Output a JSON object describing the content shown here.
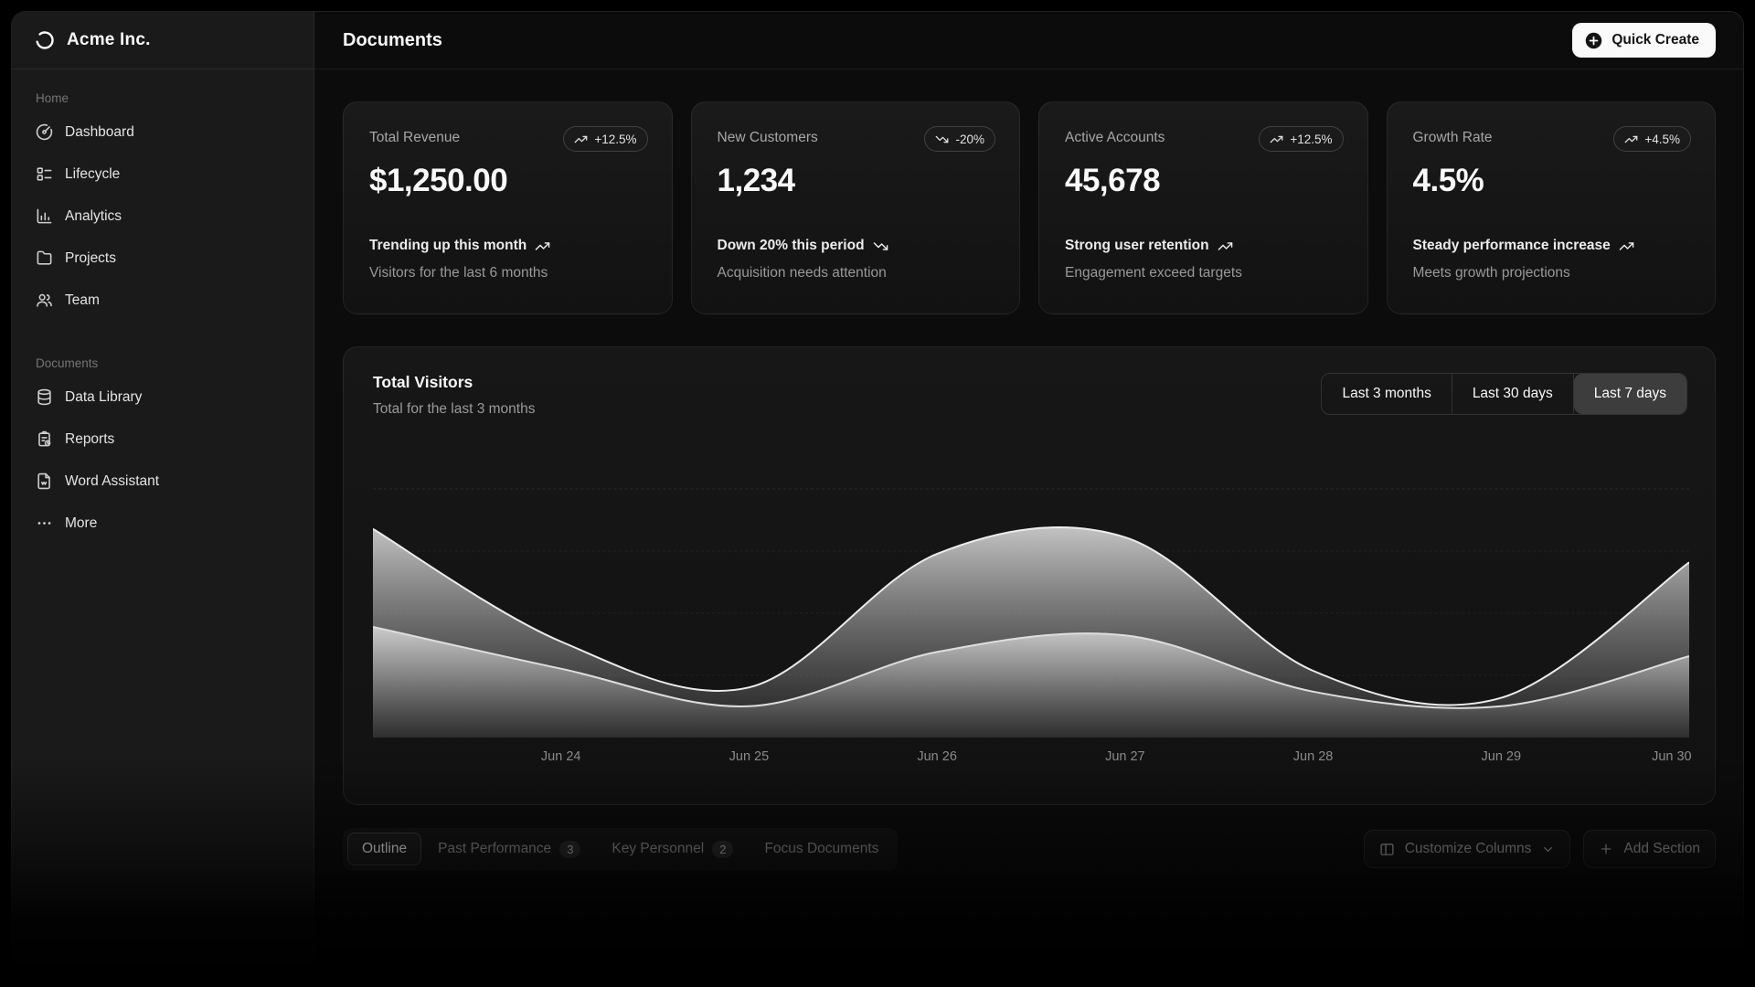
{
  "brand": {
    "name": "Acme Inc."
  },
  "header": {
    "title": "Documents",
    "quick_create_label": "Quick Create"
  },
  "sidebar": {
    "sections": [
      {
        "label": "Home",
        "items": [
          {
            "label": "Dashboard",
            "icon": "gauge-icon"
          },
          {
            "label": "Lifecycle",
            "icon": "list-todo-icon"
          },
          {
            "label": "Analytics",
            "icon": "bar-chart-icon"
          },
          {
            "label": "Projects",
            "icon": "folder-icon"
          },
          {
            "label": "Team",
            "icon": "users-icon"
          }
        ]
      },
      {
        "label": "Documents",
        "items": [
          {
            "label": "Data Library",
            "icon": "database-icon"
          },
          {
            "label": "Reports",
            "icon": "clipboard-icon"
          },
          {
            "label": "Word Assistant",
            "icon": "file-text-icon"
          },
          {
            "label": "More",
            "icon": "ellipsis-icon"
          }
        ]
      }
    ]
  },
  "stat_cards": [
    {
      "label": "Total Revenue",
      "badge": "+12.5%",
      "trend": "up",
      "value": "$1,250.00",
      "footer_primary": "Trending up this month",
      "footer_secondary": "Visitors for the last 6 months"
    },
    {
      "label": "New Customers",
      "badge": "-20%",
      "trend": "down",
      "value": "1,234",
      "footer_primary": "Down 20% this period",
      "footer_secondary": "Acquisition needs attention"
    },
    {
      "label": "Active Accounts",
      "badge": "+12.5%",
      "trend": "up",
      "value": "45,678",
      "footer_primary": "Strong user retention",
      "footer_secondary": "Engagement exceed targets"
    },
    {
      "label": "Growth Rate",
      "badge": "+4.5%",
      "trend": "up",
      "value": "4.5%",
      "footer_primary": "Steady performance increase",
      "footer_secondary": "Meets growth projections"
    }
  ],
  "chart_card": {
    "title": "Total Visitors",
    "subtitle": "Total for the last 3 months",
    "ranges": [
      {
        "label": "Last 3 months",
        "active": false
      },
      {
        "label": "Last 30 days",
        "active": false
      },
      {
        "label": "Last 7 days",
        "active": true
      }
    ]
  },
  "chart_data": {
    "type": "area",
    "title": "Total Visitors",
    "x_labels": [
      "Jun 24",
      "Jun 25",
      "Jun 26",
      "Jun 27",
      "Jun 28",
      "Jun 29",
      "Jun 30"
    ],
    "leading_edge_point": true,
    "series": [
      {
        "name": "visitors-upper",
        "values": [
          500,
          230,
          120,
          440,
          480,
          160,
          95,
          420
        ]
      },
      {
        "name": "visitors-lower",
        "values": [
          265,
          165,
          75,
          205,
          245,
          110,
          75,
          195
        ]
      }
    ],
    "ylim": [
      0,
      690
    ],
    "grid": "horizontal-dashed",
    "legend": "none",
    "y_axis_labels": "none",
    "curve": "smooth-natural",
    "fill": "vertical-gradient-gray"
  },
  "bottom_tabs": {
    "tabs": [
      {
        "label": "Outline",
        "active": true
      },
      {
        "label": "Past Performance",
        "badge": "3"
      },
      {
        "label": "Key Personnel",
        "badge": "2"
      },
      {
        "label": "Focus Documents"
      }
    ]
  },
  "bottom_actions": {
    "customize_label": "Customize Columns",
    "add_label": "Add Section"
  },
  "colors": {
    "page_bg": "#000000",
    "sidebar_bg": "#1a1a1a",
    "content_bg": "#0c0c0c",
    "card_bg": "#161616",
    "accent_button": "#fafafa",
    "muted_text": "#a3a3a3",
    "chart_line": "#e8e8e8",
    "active_toggle_bg": "#3d3d3d"
  }
}
